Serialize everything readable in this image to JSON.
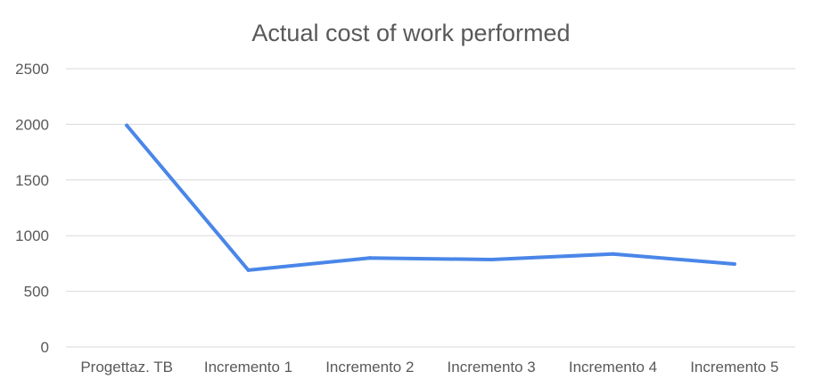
{
  "chart_data": {
    "type": "line",
    "title": "Actual cost of work performed",
    "xlabel": "",
    "ylabel": "",
    "categories": [
      "Progettaz. TB",
      "Incremento 1",
      "Incremento 2",
      "Incremento 3",
      "Incremento 4",
      "Incremento 5"
    ],
    "series": [
      {
        "values": [
          1990,
          690,
          800,
          785,
          835,
          745
        ],
        "color": "#4a86e8"
      }
    ],
    "ylim": [
      0,
      2500
    ],
    "yticks": [
      0,
      500,
      1000,
      1500,
      2000,
      2500
    ],
    "grid": true,
    "legend": "none"
  }
}
